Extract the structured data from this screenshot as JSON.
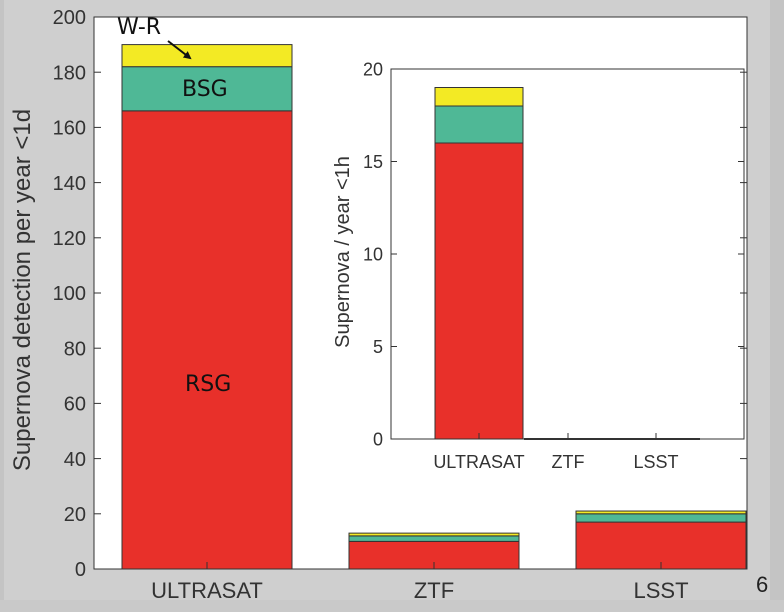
{
  "page": {
    "number": "6"
  },
  "chart_data": [
    {
      "type": "bar",
      "stacked": true,
      "categories": [
        "ULTRASAT",
        "ZTF",
        "LSST"
      ],
      "series": [
        {
          "name": "RSG",
          "values": [
            166,
            10,
            17
          ],
          "color": "#e8302a"
        },
        {
          "name": "BSG",
          "values": [
            16,
            2,
            3
          ],
          "color": "#4fb896"
        },
        {
          "name": "W-R",
          "values": [
            8,
            1,
            1
          ],
          "color": "#f3ea24"
        }
      ],
      "ylabel": "Supernova detection per year <1d",
      "ylim": [
        0,
        200
      ],
      "yticks": [
        "0",
        "20",
        "40",
        "60",
        "80",
        "100",
        "120",
        "140",
        "160",
        "180",
        "200"
      ],
      "annotations": {
        "wr": "W-R",
        "bsg": "BSG",
        "rsg": "RSG"
      }
    },
    {
      "type": "bar",
      "stacked": true,
      "categories": [
        "ULTRASAT",
        "ZTF",
        "LSST"
      ],
      "series": [
        {
          "values": [
            16,
            0,
            0
          ],
          "color": "#e8302a"
        },
        {
          "values": [
            2,
            0,
            0
          ],
          "color": "#4fb896"
        },
        {
          "values": [
            1,
            0,
            0
          ],
          "color": "#f3ea24"
        }
      ],
      "ylabel": "Supernova / year <1h",
      "ylim": [
        0,
        20
      ],
      "yticks": [
        "0",
        "5",
        "10",
        "15",
        "20"
      ]
    }
  ]
}
